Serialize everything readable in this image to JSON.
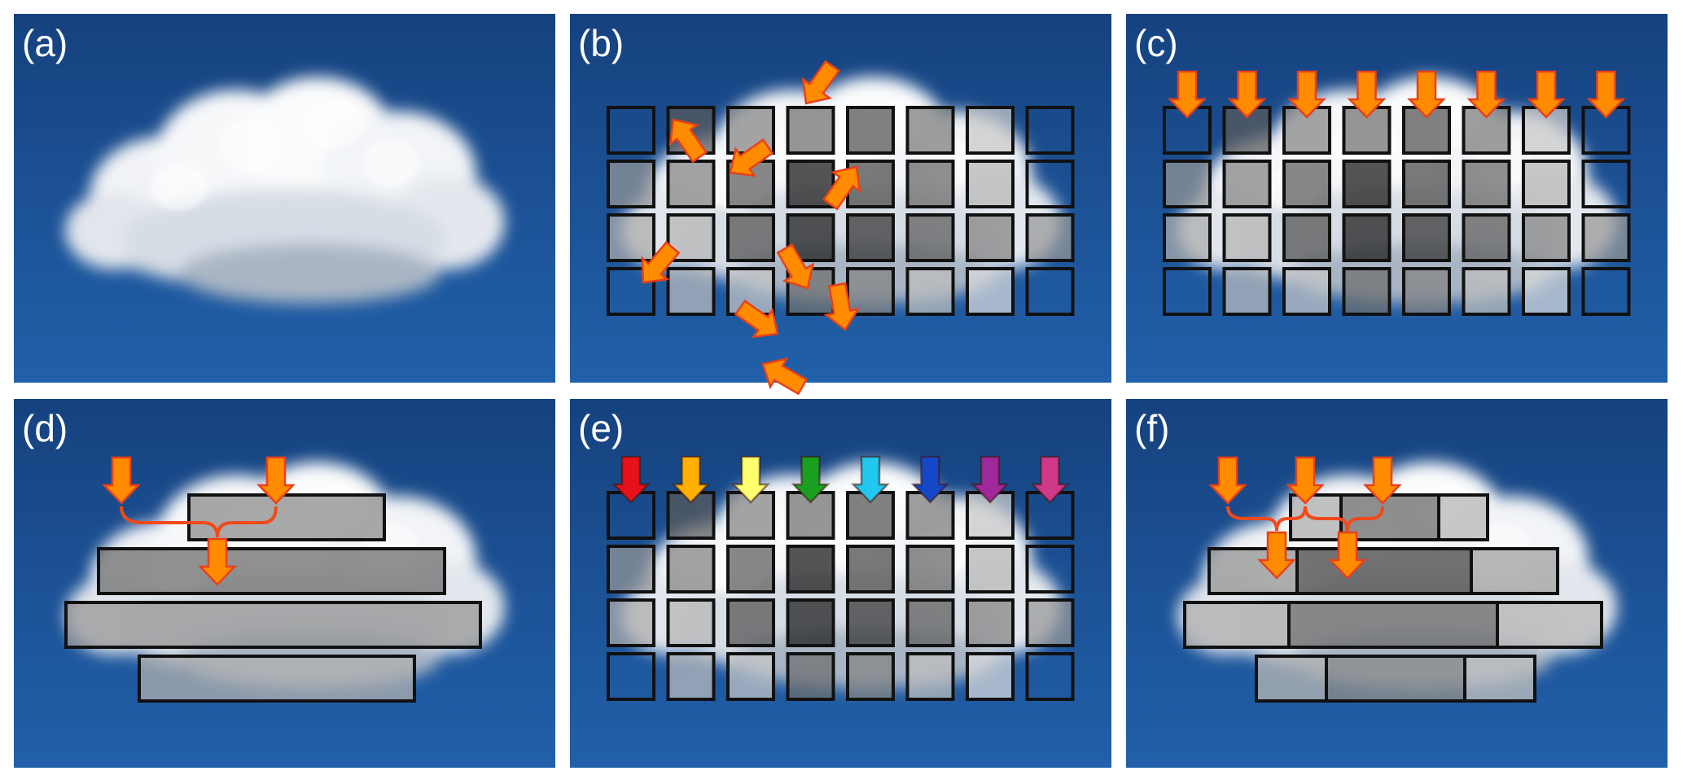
{
  "panels": [
    {
      "id": "a",
      "label": "(a)"
    },
    {
      "id": "b",
      "label": "(b)"
    },
    {
      "id": "c",
      "label": "(c)"
    },
    {
      "id": "d",
      "label": "(d)"
    },
    {
      "id": "e",
      "label": "(e)"
    },
    {
      "id": "f",
      "label": "(f)"
    }
  ],
  "colors": {
    "sky_top": "#1b4a90",
    "sky_bottom": "#1e5aa4",
    "cloud": "#f2f4f7",
    "arrow_orange": "#ff8c00",
    "arrow_outline": "#e8401a",
    "brace": "#f04a1a",
    "cell_border": "#111111"
  },
  "grid": {
    "rows": 4,
    "cols": 8,
    "shades": [
      [
        0,
        90,
        130,
        110,
        80,
        120,
        200,
        0
      ],
      [
        150,
        130,
        90,
        20,
        70,
        100,
        180,
        0
      ],
      [
        170,
        180,
        80,
        25,
        50,
        90,
        130,
        150
      ],
      [
        0,
        190,
        200,
        110,
        130,
        190,
        220,
        0
      ]
    ]
  },
  "rainbow_arrows": [
    "#e8101a",
    "#ffb000",
    "#ffff70",
    "#1aa020",
    "#20c8f0",
    "#1448c8",
    "#a0289a",
    "#d0388a"
  ],
  "bars_d": [
    {
      "shade": 140
    },
    {
      "shade": 110
    },
    {
      "shade": 150
    },
    {
      "shade": 175
    }
  ],
  "bars_f": [
    [
      175,
      110,
      185
    ],
    [
      150,
      75,
      165
    ],
    [
      175,
      110,
      185
    ],
    [
      180,
      140,
      190
    ]
  ]
}
